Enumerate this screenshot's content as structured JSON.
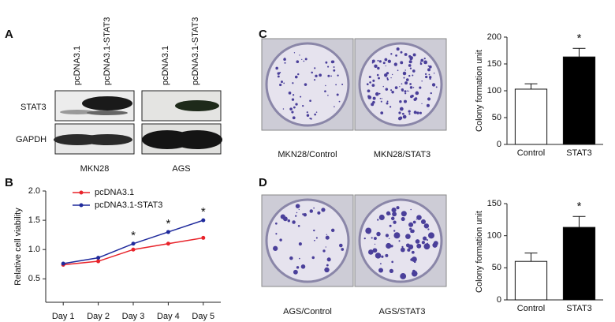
{
  "panel_labels": [
    "A",
    "B",
    "C",
    "D"
  ],
  "blot": {
    "lanes": [
      "pcDNA3.1",
      "pcDNA3.1-STAT3",
      "pcDNA3.1",
      "pcDNA3.1-STAT3"
    ],
    "rows": [
      "STAT3",
      "GAPDH"
    ],
    "groups": [
      "MKN28",
      "AGS"
    ]
  },
  "plates": {
    "C": [
      "MKN28/Control",
      "MKN28/STAT3"
    ],
    "D": [
      "AGS/Control",
      "AGS/STAT3"
    ]
  },
  "chart_data": [
    {
      "type": "line",
      "categories": [
        "Day 1",
        "Day 2",
        "Day 3",
        "Day 4",
        "Day 5"
      ],
      "series": [
        {
          "name": "pcDNA3.1",
          "color": "#e8232a",
          "values": [
            0.74,
            0.8,
            1.0,
            1.1,
            1.2
          ]
        },
        {
          "name": "pcDNA3.1-STAT3",
          "color": "#1f2a9c",
          "values": [
            0.76,
            0.86,
            1.1,
            1.3,
            1.5
          ]
        }
      ],
      "ylim": [
        0.1,
        2.0
      ],
      "yticks": [
        0.5,
        {
          "value": 1,
          "label": "1.0"
        },
        1.5,
        {
          "value": 2,
          "label": "2.0"
        }
      ],
      "y_label": "Relative cell viability",
      "significance": [
        null,
        null,
        "*",
        "*",
        "*"
      ],
      "legend": "upper left"
    },
    {
      "type": "bar",
      "categories": [
        "Control",
        "STAT3"
      ],
      "values": [
        103,
        163
      ],
      "errors": [
        10,
        16
      ],
      "colors": [
        "#ffffff",
        "#000000"
      ],
      "ylim": [
        0,
        200
      ],
      "yticks": [
        0,
        50,
        100,
        150,
        200
      ],
      "y_label": "Colony formation unit",
      "significance": [
        null,
        "*"
      ]
    },
    {
      "type": "bar",
      "categories": [
        "Control",
        "STAT3"
      ],
      "values": [
        60,
        113
      ],
      "errors": [
        13,
        17
      ],
      "colors": [
        "#ffffff",
        "#000000"
      ],
      "ylim": [
        0,
        150
      ],
      "yticks": [
        0,
        50,
        100,
        150
      ],
      "y_label": "Colony formation unit",
      "significance": [
        null,
        "*"
      ]
    }
  ]
}
